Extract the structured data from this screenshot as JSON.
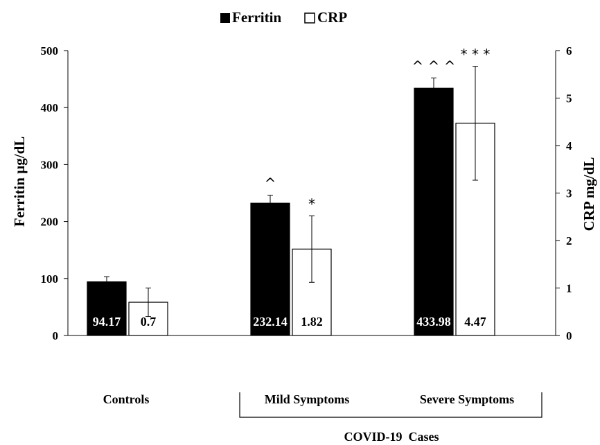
{
  "chart_data": {
    "type": "bar",
    "legend": {
      "placement": "top-center",
      "entries": [
        "Ferritin",
        "CRP"
      ]
    },
    "categories": [
      "Controls",
      "Mild Symptoms",
      "Severe Symptoms"
    ],
    "group_label": "COVID-19  Cases",
    "group_members": [
      "Mild Symptoms",
      "Severe Symptoms"
    ],
    "y_left": {
      "label": "Ferritin µg/dL",
      "range": [
        0,
        500
      ],
      "ticks": [
        "0",
        "100",
        "200",
        "300",
        "400",
        "500"
      ]
    },
    "y_right": {
      "label": "CRP mg/dL",
      "range": [
        0,
        6
      ],
      "ticks": [
        "0",
        "1",
        "2",
        "3",
        "4",
        "5",
        "6"
      ]
    },
    "grid": false,
    "series": [
      {
        "name": "Ferritin",
        "axis": "left",
        "color": "#000000",
        "values": [
          94.17,
          232.14,
          433.98
        ],
        "value_labels": [
          "94.17",
          "232.14",
          "433.98"
        ],
        "error": [
          9,
          14,
          18
        ],
        "annotations": [
          "",
          "^",
          "^ ^ ^"
        ]
      },
      {
        "name": "CRP",
        "axis": "right",
        "color": "#ffffff",
        "values": [
          0.7,
          1.82,
          4.47
        ],
        "value_labels": [
          "0.7",
          "1.82",
          "4.47"
        ],
        "error": [
          0.3,
          0.7,
          1.2
        ],
        "annotations": [
          "",
          "*",
          "* * *"
        ]
      }
    ]
  }
}
